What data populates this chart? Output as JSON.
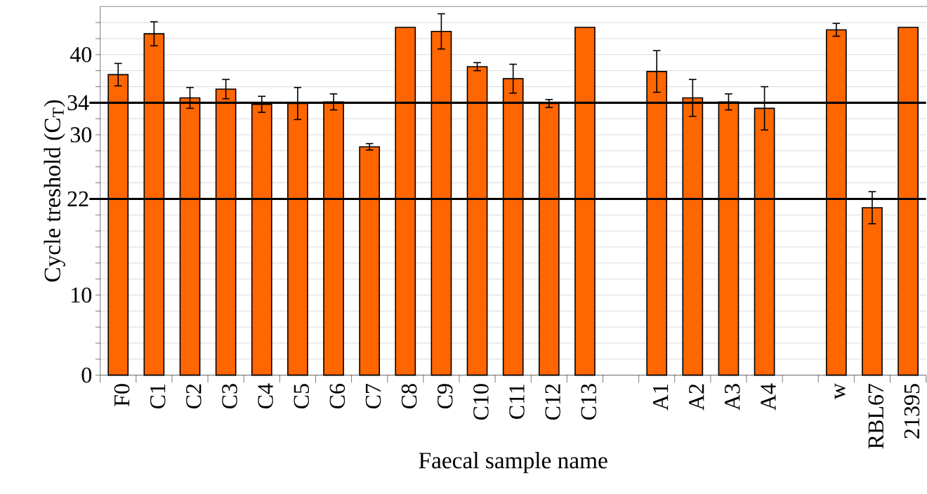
{
  "chart_data": {
    "type": "bar",
    "xlabel": "Faecal sample name",
    "ylabel": "Cycle treshold (C$_{T}$)",
    "categories": [
      "F0",
      "C1",
      "C2",
      "C3",
      "C4",
      "C5",
      "C6",
      "C7",
      "C8",
      "C9",
      "C10",
      "C11",
      "C12",
      "C13",
      null,
      "A1",
      "A2",
      "A3",
      "A4",
      null,
      "w",
      "RBL67",
      "21395"
    ],
    "values": [
      37.5,
      42.6,
      34.6,
      35.7,
      33.8,
      33.9,
      34.1,
      28.5,
      43.4,
      42.9,
      38.5,
      37.0,
      33.9,
      43.4,
      null,
      37.9,
      34.6,
      34.1,
      33.3,
      null,
      43.1,
      20.9,
      43.4
    ],
    "errors": [
      1.4,
      1.5,
      1.3,
      1.2,
      1.0,
      2.0,
      1.0,
      0.4,
      null,
      2.2,
      0.5,
      1.8,
      0.5,
      null,
      null,
      2.6,
      2.3,
      1.0,
      2.7,
      null,
      0.8,
      2.0,
      null
    ],
    "color": "#ff6600",
    "ylim": [
      0,
      46
    ],
    "yticks": [
      0,
      {
        "value": 2,
        "label": null
      },
      {
        "value": 4,
        "label": null
      },
      {
        "value": 6,
        "label": null
      },
      {
        "value": 8,
        "label": null
      },
      10,
      {
        "value": 12,
        "label": null
      },
      {
        "value": 14,
        "label": null
      },
      {
        "value": 16,
        "label": null
      },
      {
        "value": 18,
        "label": null
      },
      {
        "value": 20,
        "label": null
      },
      {
        "value": 24,
        "label": null
      },
      {
        "value": 26,
        "label": null
      },
      {
        "value": 28,
        "label": null
      },
      30,
      {
        "value": 32,
        "label": null
      },
      {
        "value": 36,
        "label": null
      },
      {
        "value": 38,
        "label": null
      },
      40,
      {
        "value": 42,
        "label": null
      },
      {
        "value": 44,
        "label": null
      }
    ],
    "grid": "y",
    "ref_lines": [
      {
        "axis": "y",
        "value": 22,
        "label": "22",
        "color": "#000000"
      },
      {
        "axis": "y",
        "value": 34,
        "label": "34",
        "color": "#000000"
      }
    ]
  }
}
